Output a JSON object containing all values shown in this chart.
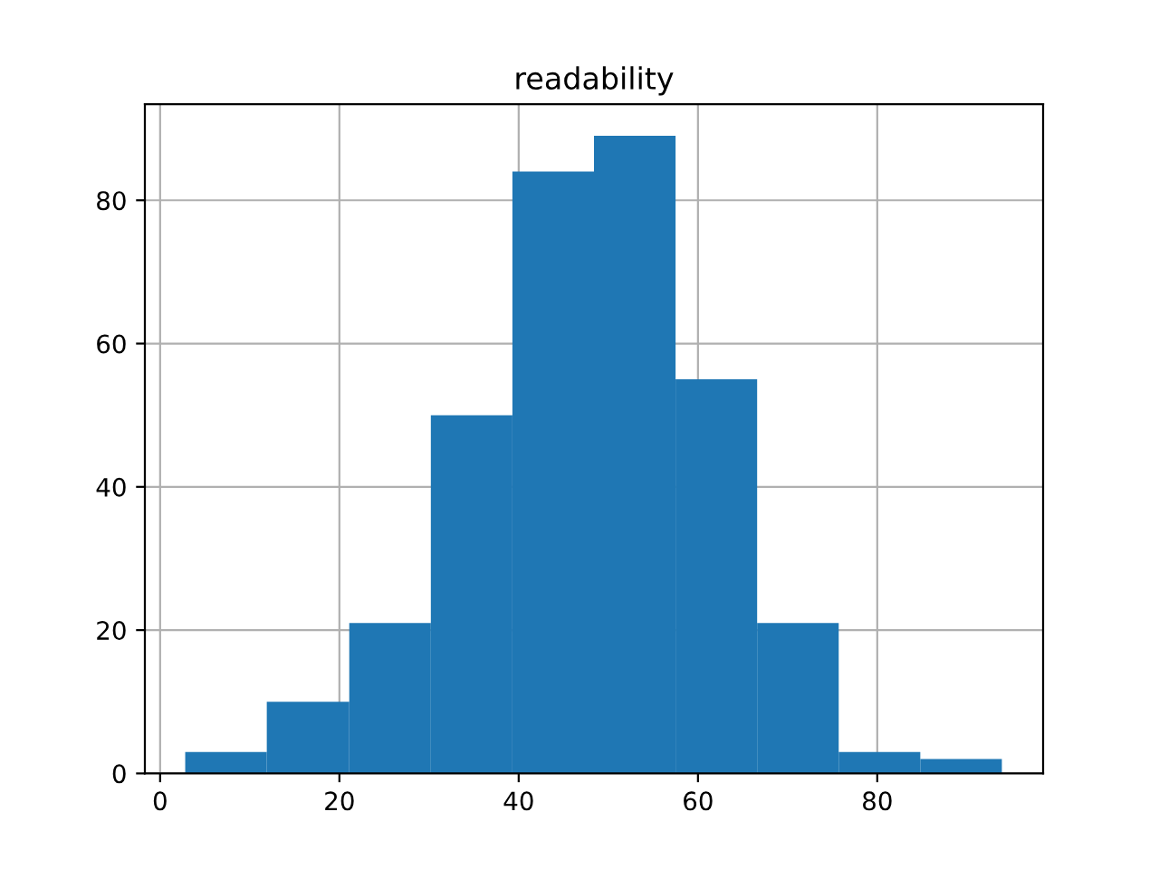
{
  "chart_data": {
    "type": "histogram",
    "title": "readability",
    "bins": [
      2.8,
      11.9,
      21.1,
      30.2,
      39.3,
      48.4,
      57.5,
      66.6,
      75.7,
      84.8,
      93.9
    ],
    "values": [
      3,
      10,
      21,
      50,
      84,
      89,
      55,
      21,
      3,
      2
    ],
    "color": "#1f77b4",
    "xlim": [
      -1.7,
      98.5
    ],
    "xticks": [
      0,
      20,
      40,
      60,
      80
    ],
    "ylim": [
      0,
      93.4
    ],
    "yticks": [
      0,
      20,
      40,
      60,
      80
    ],
    "grid": true
  }
}
